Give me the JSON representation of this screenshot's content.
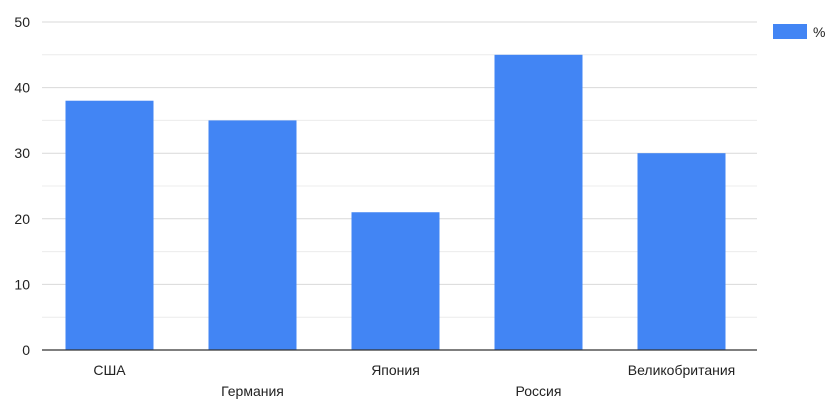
{
  "chart_data": {
    "type": "bar",
    "categories": [
      "США",
      "Германия",
      "Япония",
      "Россия",
      "Великобритания"
    ],
    "series": [
      {
        "name": "%",
        "values": [
          38,
          35,
          21,
          45,
          30
        ]
      }
    ],
    "ylim": [
      0,
      50
    ],
    "y_ticks": [
      "0",
      "10",
      "20",
      "30",
      "40",
      "50"
    ],
    "grid": true,
    "legend": "top-right",
    "colors": {
      "bar": "#4285f4",
      "grid": "#d9d9d9",
      "axis": "#333333"
    }
  }
}
